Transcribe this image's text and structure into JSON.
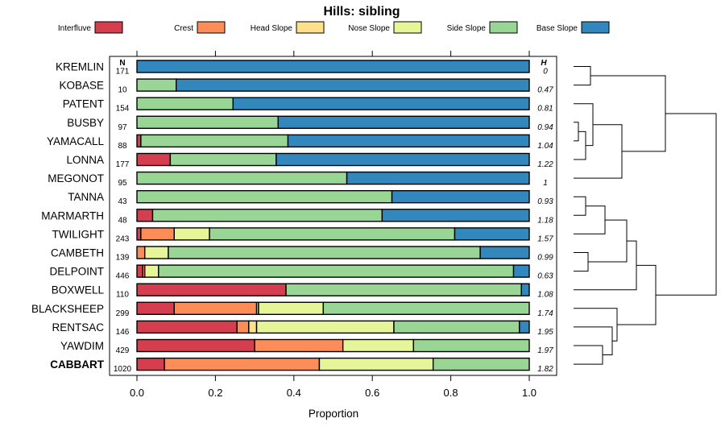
{
  "chart_data": {
    "type": "bar",
    "orientation": "horizontal",
    "stacked": true,
    "title": "Hills: sibling",
    "xlabel": "Proportion",
    "ylabel": "",
    "xlim": [
      0,
      1
    ],
    "xticks": [
      "0.0",
      "0.2",
      "0.4",
      "0.6",
      "0.8",
      "1.0"
    ],
    "n_header": "N",
    "h_header": "H",
    "legend": [
      {
        "name": "Interfluve",
        "color": "#d53e4f"
      },
      {
        "name": "Crest",
        "color": "#fc8d59"
      },
      {
        "name": "Head Slope",
        "color": "#fee08b"
      },
      {
        "name": "Nose Slope",
        "color": "#e6f598"
      },
      {
        "name": "Side Slope",
        "color": "#99d594"
      },
      {
        "name": "Base Slope",
        "color": "#3288bd"
      }
    ],
    "categories": [
      "KREMLIN",
      "KOBASE",
      "PATENT",
      "BUSBY",
      "YAMACALL",
      "LONNA",
      "MEGONOT",
      "TANNA",
      "MARMARTH",
      "TWILIGHT",
      "CAMBETH",
      "DELPOINT",
      "BOXWELL",
      "BLACKSHEEP",
      "RENTSAC",
      "YAWDIM",
      "CABBART"
    ],
    "highlight": "CABBART",
    "n": [
      "171",
      "10",
      "154",
      "97",
      "88",
      "177",
      "95",
      "43",
      "48",
      "243",
      "139",
      "446",
      "110",
      "299",
      "146",
      "429",
      "1020"
    ],
    "h": [
      "0",
      "0.47",
      "0.81",
      "0.94",
      "1.04",
      "1.22",
      "1",
      "0.93",
      "1.18",
      "1.57",
      "0.99",
      "0.63",
      "1.08",
      "1.74",
      "1.95",
      "1.97",
      "1.82"
    ],
    "series": [
      {
        "name": "Interfluve",
        "values": [
          0,
          0,
          0,
          0,
          0.01,
          0.085,
          0,
          0,
          0.04,
          0.01,
          0,
          0.015,
          0.38,
          0.095,
          0.255,
          0.3,
          0.07
        ]
      },
      {
        "name": "Crest",
        "values": [
          0,
          0,
          0,
          0,
          0,
          0,
          0,
          0,
          0,
          0.085,
          0.02,
          0.005,
          0,
          0.21,
          0.03,
          0.225,
          0.395
        ]
      },
      {
        "name": "Head Slope",
        "values": [
          0,
          0,
          0,
          0,
          0,
          0,
          0,
          0,
          0,
          0,
          0,
          0,
          0,
          0.005,
          0.02,
          0,
          0
        ]
      },
      {
        "name": "Nose Slope",
        "values": [
          0,
          0,
          0,
          0,
          0,
          0,
          0,
          0,
          0,
          0.09,
          0.06,
          0.035,
          0,
          0.165,
          0.35,
          0.18,
          0.29
        ]
      },
      {
        "name": "Side Slope",
        "values": [
          0,
          0.1,
          0.245,
          0.36,
          0.375,
          0.27,
          0.535,
          0.65,
          0.585,
          0.625,
          0.795,
          0.905,
          0.6,
          0.525,
          0.32,
          0.295,
          0.245
        ]
      },
      {
        "name": "Base Slope",
        "values": [
          1.0,
          0.9,
          0.755,
          0.64,
          0.615,
          0.645,
          0.465,
          0.35,
          0.375,
          0.19,
          0.125,
          0.04,
          0.02,
          0,
          0.025,
          0,
          0
        ]
      }
    ],
    "dendrogram": {
      "leaf_order": [
        "KREMLIN",
        "KOBASE",
        "PATENT",
        "BUSBY",
        "YAMACALL",
        "LONNA",
        "MEGONOT",
        "TANNA",
        "MARMARTH",
        "TWILIGHT",
        "CAMBETH",
        "DELPOINT",
        "BOXWELL",
        "BLACKSHEEP",
        "RENTSAC",
        "YAWDIM",
        "CABBART"
      ],
      "merges": [
        [
          3,
          4,
          0.02
        ],
        [
          -1,
          5,
          0.05
        ],
        [
          2,
          -2,
          0.08
        ],
        [
          0,
          1,
          0.07
        ],
        [
          -3,
          6,
          0.2
        ],
        [
          -4,
          -5,
          0.38
        ],
        [
          7,
          8,
          0.05
        ],
        [
          10,
          11,
          0.06
        ],
        [
          -7,
          9,
          0.13
        ],
        [
          -9,
          -8,
          0.22
        ],
        [
          -10,
          12,
          0.26
        ],
        [
          15,
          16,
          0.12
        ],
        [
          14,
          -12,
          0.16
        ],
        [
          13,
          -13,
          0.18
        ],
        [
          -11,
          -14,
          0.34
        ],
        [
          -6,
          -15,
          0.59
        ]
      ]
    }
  }
}
